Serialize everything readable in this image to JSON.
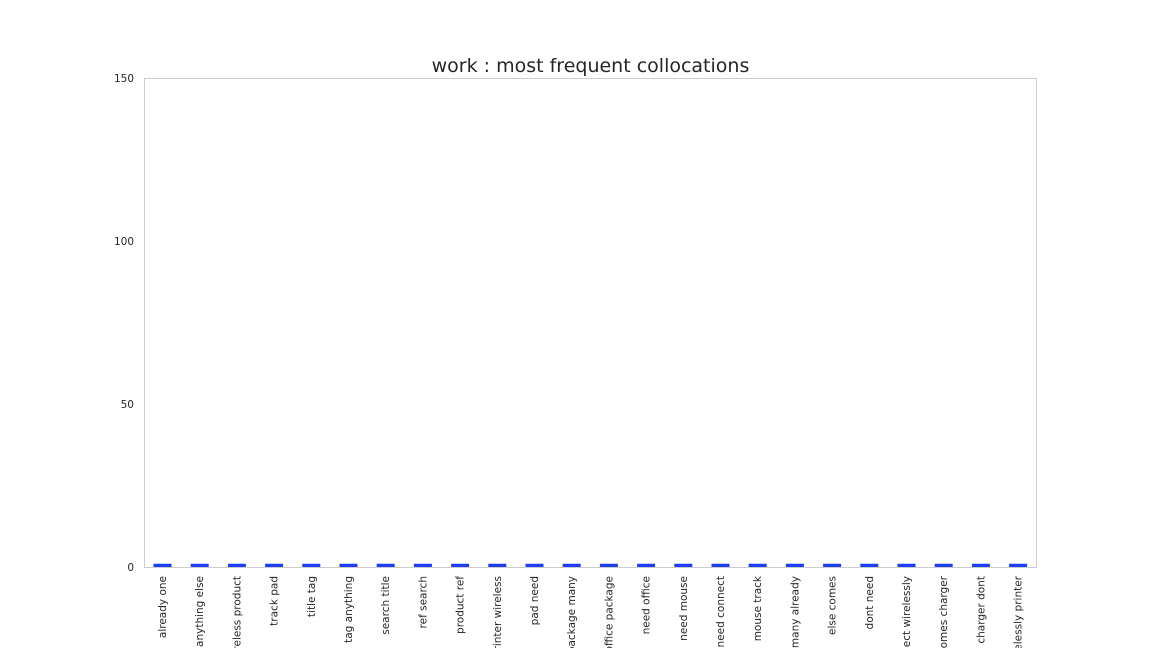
{
  "chart_data": {
    "type": "bar",
    "title": "work : most frequent collocations",
    "xlabel": "",
    "ylabel": "",
    "ylim": [
      0,
      150
    ],
    "yticks": [
      0,
      50,
      100,
      150
    ],
    "grid": false,
    "bar_color": "#1f3df5",
    "categories": [
      "already one",
      "anything else",
      "wireless product",
      "track pad",
      "title tag",
      "tag anything",
      "search title",
      "ref search",
      "product ref",
      "printer wireless",
      "pad need",
      "package many",
      "office package",
      "need office",
      "need mouse",
      "need connect",
      "mouse track",
      "many already",
      "else comes",
      "dont need",
      "connect wirelessly",
      "comes charger",
      "charger dont",
      "wirelessly printer"
    ],
    "values": [
      1,
      1,
      1,
      1,
      1,
      1,
      1,
      1,
      1,
      1,
      1,
      1,
      1,
      1,
      1,
      1,
      1,
      1,
      1,
      1,
      1,
      1,
      1,
      1
    ]
  }
}
